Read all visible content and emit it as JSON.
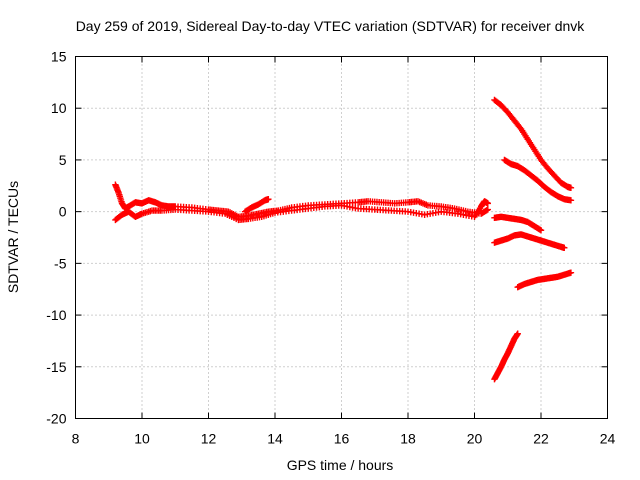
{
  "chart_data": {
    "type": "scatter",
    "title": "Day 259 of 2019, Sidereal Day-to-day VTEC variation (SDTVAR) for receiver dnvk",
    "xlabel": "GPS time / hours",
    "ylabel": "SDTVAR / TECUs",
    "xlim": [
      8,
      24
    ],
    "ylim": [
      -20,
      15
    ],
    "xticks": [
      8,
      10,
      12,
      14,
      16,
      18,
      20,
      22,
      24
    ],
    "yticks": [
      -20,
      -15,
      -10,
      -5,
      0,
      5,
      10,
      15
    ],
    "grid": true,
    "marker": "+",
    "color": "#ff0000",
    "series": [
      {
        "name": "main band",
        "points": [
          [
            9.2,
            2.6
          ],
          [
            9.3,
            1.8
          ],
          [
            9.4,
            0.8
          ],
          [
            9.5,
            0.3
          ],
          [
            9.6,
            0.5
          ],
          [
            9.8,
            0.9
          ],
          [
            10.0,
            0.8
          ],
          [
            10.2,
            1.1
          ],
          [
            10.4,
            0.9
          ],
          [
            10.6,
            0.6
          ],
          [
            10.8,
            0.5
          ],
          [
            11.0,
            0.5
          ],
          [
            11.5,
            0.4
          ],
          [
            12.0,
            0.2
          ],
          [
            12.3,
            0.1
          ],
          [
            12.6,
            0.0
          ],
          [
            12.9,
            -0.5
          ],
          [
            13.2,
            -0.4
          ],
          [
            13.5,
            -0.2
          ],
          [
            13.8,
            0.0
          ],
          [
            14.1,
            0.1
          ],
          [
            14.5,
            0.4
          ],
          [
            15.0,
            0.6
          ],
          [
            15.5,
            0.7
          ],
          [
            16.0,
            0.8
          ],
          [
            16.5,
            0.9
          ],
          [
            16.8,
            1.0
          ],
          [
            17.2,
            0.9
          ],
          [
            17.6,
            0.8
          ],
          [
            18.0,
            0.9
          ],
          [
            18.3,
            1.0
          ],
          [
            18.6,
            0.6
          ],
          [
            19.0,
            0.5
          ],
          [
            19.4,
            0.3
          ],
          [
            19.8,
            0.0
          ],
          [
            20.2,
            -0.2
          ],
          [
            20.4,
            0.2
          ]
        ]
      },
      {
        "name": "main band lower",
        "points": [
          [
            9.2,
            -0.8
          ],
          [
            9.4,
            -0.3
          ],
          [
            9.6,
            0.0
          ],
          [
            9.8,
            -0.5
          ],
          [
            10.0,
            -0.2
          ],
          [
            10.3,
            0.1
          ],
          [
            10.6,
            0.1
          ],
          [
            11.0,
            0.2
          ],
          [
            11.5,
            0.1
          ],
          [
            12.0,
            0.0
          ],
          [
            12.5,
            -0.2
          ],
          [
            12.9,
            -0.8
          ],
          [
            13.2,
            -0.7
          ],
          [
            13.6,
            -0.5
          ],
          [
            14.0,
            -0.1
          ],
          [
            14.5,
            0.1
          ],
          [
            15.0,
            0.3
          ],
          [
            15.5,
            0.5
          ],
          [
            16.0,
            0.6
          ],
          [
            16.5,
            0.3
          ],
          [
            17.0,
            0.2
          ],
          [
            17.5,
            0.1
          ],
          [
            18.0,
            0.0
          ],
          [
            18.5,
            -0.3
          ],
          [
            19.0,
            0.0
          ],
          [
            19.5,
            -0.2
          ],
          [
            20.0,
            -0.5
          ],
          [
            20.2,
            0.5
          ],
          [
            20.3,
            1.0
          ],
          [
            20.4,
            0.8
          ]
        ]
      },
      {
        "name": "segment upper",
        "points": [
          [
            13.1,
            0.0
          ],
          [
            13.3,
            0.4
          ],
          [
            13.5,
            0.7
          ],
          [
            13.7,
            1.1
          ],
          [
            13.8,
            1.2
          ]
        ]
      },
      {
        "name": "segment 20-22 a",
        "points": [
          [
            20.6,
            10.8
          ],
          [
            20.8,
            10.3
          ],
          [
            21.0,
            9.6
          ],
          [
            21.2,
            8.8
          ],
          [
            21.4,
            8.0
          ],
          [
            21.6,
            7.0
          ],
          [
            21.8,
            6.0
          ],
          [
            22.0,
            5.0
          ],
          [
            22.2,
            4.2
          ],
          [
            22.4,
            3.5
          ],
          [
            22.6,
            2.8
          ],
          [
            22.8,
            2.4
          ],
          [
            22.9,
            2.3
          ]
        ]
      },
      {
        "name": "segment 20-22 b",
        "points": [
          [
            20.9,
            5.0
          ],
          [
            21.1,
            4.6
          ],
          [
            21.3,
            4.4
          ],
          [
            21.5,
            4.0
          ],
          [
            21.7,
            3.5
          ],
          [
            21.9,
            3.0
          ],
          [
            22.1,
            2.4
          ],
          [
            22.3,
            1.9
          ],
          [
            22.5,
            1.5
          ],
          [
            22.7,
            1.2
          ],
          [
            22.9,
            1.1
          ]
        ]
      },
      {
        "name": "segment 20-22 c",
        "points": [
          [
            20.6,
            -0.6
          ],
          [
            20.8,
            -0.5
          ],
          [
            21.0,
            -0.6
          ],
          [
            21.2,
            -0.7
          ],
          [
            21.4,
            -0.8
          ],
          [
            21.6,
            -1.0
          ],
          [
            21.8,
            -1.4
          ],
          [
            22.0,
            -1.8
          ]
        ]
      },
      {
        "name": "segment 20-22 d",
        "points": [
          [
            20.6,
            -3.0
          ],
          [
            20.8,
            -2.8
          ],
          [
            21.0,
            -2.6
          ],
          [
            21.2,
            -2.3
          ],
          [
            21.4,
            -2.2
          ],
          [
            21.6,
            -2.4
          ],
          [
            21.8,
            -2.6
          ],
          [
            22.0,
            -2.8
          ],
          [
            22.2,
            -3.0
          ],
          [
            22.4,
            -3.2
          ],
          [
            22.6,
            -3.4
          ],
          [
            22.7,
            -3.5
          ]
        ]
      },
      {
        "name": "segment 20-22 e",
        "points": [
          [
            21.3,
            -7.3
          ],
          [
            21.5,
            -7.0
          ],
          [
            21.7,
            -6.8
          ],
          [
            21.9,
            -6.6
          ],
          [
            22.1,
            -6.5
          ],
          [
            22.3,
            -6.4
          ],
          [
            22.5,
            -6.3
          ],
          [
            22.7,
            -6.1
          ],
          [
            22.9,
            -5.9
          ]
        ]
      },
      {
        "name": "segment 20-22 f",
        "points": [
          [
            20.6,
            -16.2
          ],
          [
            20.7,
            -15.6
          ],
          [
            20.8,
            -15.0
          ],
          [
            20.9,
            -14.3
          ],
          [
            21.0,
            -13.7
          ],
          [
            21.1,
            -13.0
          ],
          [
            21.2,
            -12.3
          ],
          [
            21.3,
            -11.8
          ]
        ]
      }
    ]
  }
}
